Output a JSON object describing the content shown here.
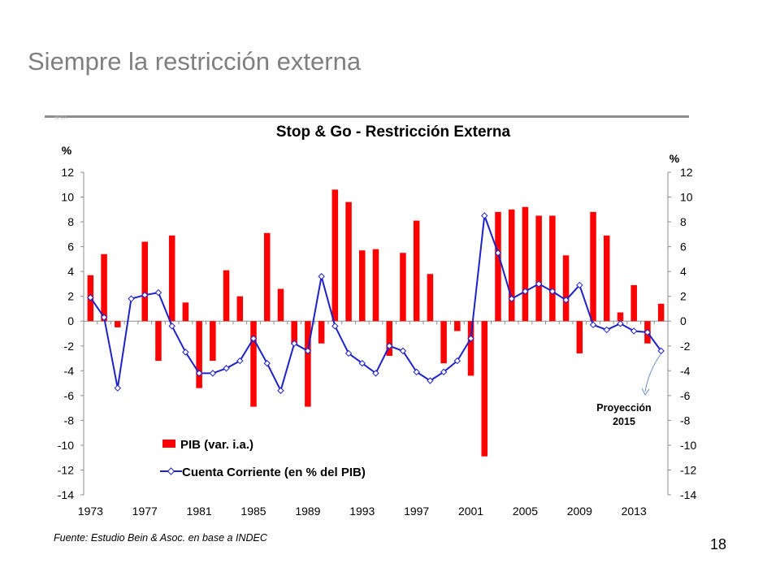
{
  "slide": {
    "title": "Siempre la restricción externa",
    "watermark": "BFCA",
    "source": "Fuente: Estudio Bein & Asoc. en base a INDEC",
    "page_number": "18"
  },
  "colors": {
    "bar": "#ff0000",
    "line": "#1e22c8",
    "axis": "#8c8c8c"
  },
  "chart_data": {
    "type": "bar",
    "title": "Stop & Go - Restricción Externa",
    "ylabel": "%",
    "y2label": "%",
    "ylim": [
      -14,
      12
    ],
    "y2lim": [
      -14,
      12
    ],
    "yticks": [
      "12",
      "10",
      "8",
      "6",
      "4",
      "2",
      "0",
      "-2",
      "-4",
      "-6",
      "-8",
      "-10",
      "-12",
      "-14"
    ],
    "xticks": [
      "1973",
      "1977",
      "1981",
      "1985",
      "1989",
      "1993",
      "1997",
      "2001",
      "2005",
      "2009",
      "2013"
    ],
    "x": [
      1973,
      1974,
      1975,
      1976,
      1977,
      1978,
      1979,
      1980,
      1981,
      1982,
      1983,
      1984,
      1985,
      1986,
      1987,
      1988,
      1989,
      1990,
      1991,
      1992,
      1993,
      1994,
      1995,
      1996,
      1997,
      1998,
      1999,
      2000,
      2001,
      2002,
      2003,
      2004,
      2005,
      2006,
      2007,
      2008,
      2009,
      2010,
      2011,
      2012,
      2013,
      2014,
      2015
    ],
    "series": [
      {
        "name": "PIB (var. i.a.)",
        "type": "bar",
        "values": [
          3.7,
          5.4,
          -0.5,
          null,
          6.4,
          -3.2,
          6.9,
          1.5,
          -5.4,
          -3.2,
          4.1,
          2.0,
          -6.9,
          7.1,
          2.6,
          -1.9,
          -6.9,
          -1.8,
          10.6,
          9.6,
          5.7,
          5.8,
          -2.8,
          5.5,
          8.1,
          3.8,
          -3.4,
          -0.8,
          -4.4,
          -10.9,
          8.8,
          9.0,
          9.2,
          8.5,
          8.5,
          5.3,
          -2.6,
          8.8,
          6.9,
          0.7,
          2.9,
          -1.8,
          1.4
        ]
      },
      {
        "name": "Cuenta Corriente (en % del PIB)",
        "type": "line",
        "values": [
          1.9,
          0.3,
          -5.4,
          1.8,
          2.1,
          2.3,
          -0.4,
          -2.5,
          -4.2,
          -4.2,
          -3.8,
          -3.2,
          -1.4,
          -3.4,
          -5.6,
          -1.8,
          -2.4,
          3.6,
          -0.4,
          -2.6,
          -3.4,
          -4.2,
          -2.0,
          -2.4,
          -4.1,
          -4.8,
          -4.1,
          -3.2,
          -1.4,
          8.5,
          5.5,
          1.8,
          2.4,
          3.0,
          2.4,
          1.7,
          2.9,
          -0.3,
          -0.7,
          -0.2,
          -0.8,
          -0.9,
          -2.4
        ]
      }
    ],
    "legend_position": "bottom-center",
    "annotation": {
      "line1": "Proyección",
      "line2": "2015"
    },
    "grid": false
  }
}
